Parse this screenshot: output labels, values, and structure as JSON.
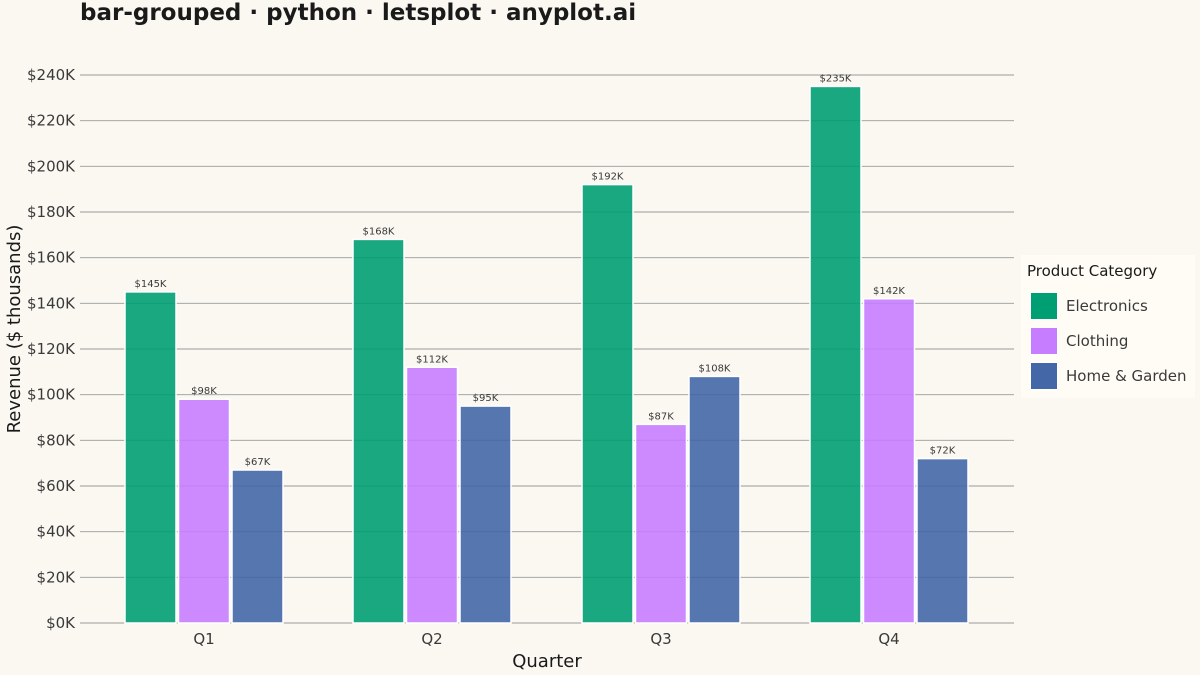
{
  "title": "bar-grouped · python · letsplot · anyplot.ai",
  "chart_data": {
    "type": "bar",
    "layout": "grouped",
    "categories": [
      "Q1",
      "Q2",
      "Q3",
      "Q4"
    ],
    "series": [
      {
        "name": "Electronics",
        "color": "#009E73",
        "values": [
          145,
          168,
          192,
          235
        ],
        "labels": [
          "$145K",
          "$168K",
          "$192K",
          "$235K"
        ]
      },
      {
        "name": "Clothing",
        "color": "#C77DFF",
        "values": [
          98,
          112,
          87,
          142
        ],
        "labels": [
          "$98K",
          "$112K",
          "$87K",
          "$142K"
        ]
      },
      {
        "name": "Home & Garden",
        "color": "#4467A8",
        "values": [
          67,
          95,
          108,
          72
        ],
        "labels": [
          "$67K",
          "$95K",
          "$108K",
          "$72K"
        ]
      }
    ],
    "xlabel": "Quarter",
    "ylabel": "Revenue ($ thousands)",
    "ylim": [
      0,
      240
    ],
    "yticks": [
      0,
      20,
      40,
      60,
      80,
      100,
      120,
      140,
      160,
      180,
      200,
      220,
      240
    ],
    "ytick_labels": [
      "$0K",
      "$20K",
      "$40K",
      "$60K",
      "$80K",
      "$100K",
      "$120K",
      "$140K",
      "$160K",
      "$180K",
      "$200K",
      "$220K",
      "$240K"
    ],
    "grid": "horizontal",
    "legend_title": "Product Category",
    "legend_position": "right"
  }
}
